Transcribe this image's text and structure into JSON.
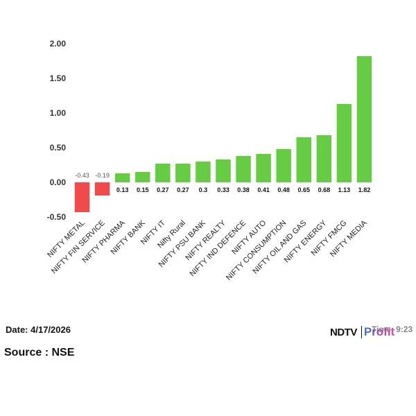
{
  "chart_data": {
    "type": "bar",
    "categories": [
      "NIFTY METAL",
      "NIFTY FIN SERVICE",
      "NIFTY PHARMA",
      "NIFTY BANK",
      "NIFTY IT",
      "Nifty Rural",
      "NIFTY PSU BANK",
      "NIFTY REALTY",
      "NIFTY IND DEFENCE",
      "NIFTY AUTO",
      "NIFTY CONSUMPTION",
      "NIFTY OIL AND GAS",
      "NIFTY ENERGY",
      "NIFTY FMCG",
      "NIFTY MEDIA"
    ],
    "values": [
      -0.43,
      -0.19,
      0.13,
      0.15,
      0.27,
      0.27,
      0.3,
      0.33,
      0.38,
      0.41,
      0.48,
      0.65,
      0.68,
      1.13,
      1.82
    ],
    "value_labels": [
      "-0.43",
      "-0.19",
      "0.13",
      "0.15",
      "0.27",
      "0.27",
      "0.3",
      "0.33",
      "0.38",
      "0.41",
      "0.48",
      "0.65",
      "0.68",
      "1.13",
      "1.82"
    ],
    "yticks": [
      "2.00",
      "1.50",
      "1.00",
      "0.50",
      "0.00",
      "-0.50"
    ],
    "ylim": [
      -0.5,
      2.0
    ],
    "title": "",
    "xlabel": "",
    "ylabel": "",
    "grid": false,
    "colors": {
      "positive": "#66cc44",
      "negative": "#f04a4a"
    }
  },
  "footer": {
    "date_text": "Date: 4/17/2026",
    "source_text": "Source : NSE",
    "time_text": "Time: 9:23"
  },
  "brand": {
    "part1": "NDTV",
    "part2": "Profit"
  }
}
